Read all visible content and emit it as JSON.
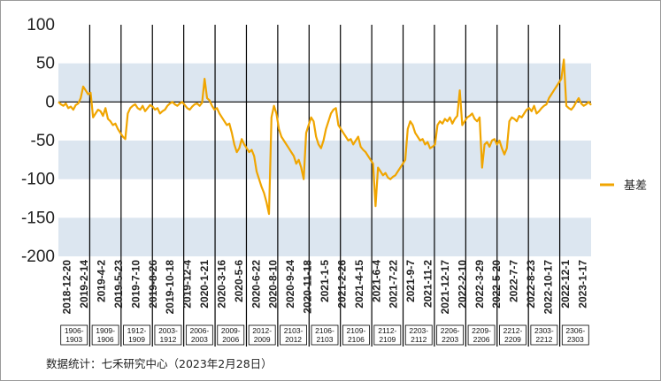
{
  "chart_data": {
    "type": "line",
    "ylim": [
      -200,
      100
    ],
    "yticks": [
      100,
      50,
      0,
      -50,
      -100,
      -150,
      -200
    ],
    "x_tick_labels": [
      "2018-12-20",
      "2019-2-14",
      "2019-4-2",
      "2019-5-23",
      "2019-7-10",
      "2019-8-26",
      "2019-10-18",
      "2019-12-4",
      "2020-1-21",
      "2020-3-16",
      "2020-5-6",
      "2020-6-22",
      "2020-8-10",
      "2020-9-24",
      "2020-11-18",
      "2021-1-5",
      "2021-2-26",
      "2021-4-15",
      "2021-6-4",
      "2021-7-22",
      "2021-9-7",
      "2021-11-2",
      "2021-12-17",
      "2022-2-10",
      "2022-3-29",
      "2022-5-20",
      "2022-7-7",
      "2022-8-23",
      "2022-10-17",
      "2022-12-1",
      "2023-1-17"
    ],
    "contract_spans": [
      "1906-1903",
      "1909-1906",
      "1912-1909",
      "2003-1912",
      "2006-2003",
      "2009-2006",
      "2012-2009",
      "2103-2012",
      "2106-2103",
      "2109-2106",
      "2112-2109",
      "2203-2112",
      "2206-2203",
      "2209-2206",
      "2212-2209",
      "2303-2212",
      "2306-2303"
    ],
    "series": [
      {
        "name": "基差",
        "color": "#f0a500",
        "values": [
          0,
          -3,
          -5,
          -2,
          -8,
          -6,
          -10,
          -4,
          -2,
          5,
          20,
          15,
          10,
          12,
          -20,
          -15,
          -10,
          -12,
          -18,
          -8,
          -22,
          -25,
          -30,
          -28,
          -35,
          -40,
          -45,
          -48,
          -15,
          -8,
          -5,
          -3,
          -8,
          -10,
          -5,
          -12,
          -8,
          -4,
          -6,
          -10,
          -8,
          -15,
          -12,
          -10,
          -5,
          -2,
          0,
          -3,
          -5,
          -2,
          0,
          -4,
          -8,
          -10,
          -6,
          -3,
          -2,
          -5,
          -1,
          30,
          5,
          2,
          -5,
          -10,
          -8,
          -15,
          -20,
          -25,
          -30,
          -28,
          -40,
          -55,
          -65,
          -60,
          -48,
          -55,
          -60,
          -65,
          -62,
          -70,
          -90,
          -100,
          -110,
          -118,
          -130,
          -145,
          -20,
          -5,
          -15,
          -35,
          -45,
          -50,
          -55,
          -60,
          -65,
          -70,
          -80,
          -75,
          -85,
          -100,
          -40,
          -30,
          -20,
          -25,
          -45,
          -55,
          -60,
          -50,
          -35,
          -25,
          -15,
          -10,
          -8,
          -30,
          -35,
          -40,
          -45,
          -50,
          -48,
          -55,
          -50,
          -45,
          -58,
          -62,
          -65,
          -70,
          -75,
          -80,
          -135,
          -85,
          -90,
          -95,
          -92,
          -98,
          -100,
          -97,
          -95,
          -90,
          -85,
          -80,
          -75,
          -35,
          -25,
          -30,
          -40,
          -45,
          -50,
          -48,
          -55,
          -52,
          -60,
          -58,
          -55,
          -30,
          -25,
          -28,
          -22,
          -25,
          -20,
          -28,
          -22,
          -18,
          15,
          -30,
          -25,
          -20,
          -18,
          -15,
          -22,
          -25,
          -20,
          -85,
          -55,
          -52,
          -58,
          -50,
          -48,
          -55,
          -50,
          -60,
          -68,
          -60,
          -25,
          -20,
          -22,
          -25,
          -18,
          -20,
          -15,
          -10,
          -8,
          -12,
          -5,
          -15,
          -12,
          -8,
          -5,
          -3,
          5,
          10,
          15,
          20,
          25,
          30,
          55,
          -5,
          -8,
          -10,
          -6,
          0,
          5,
          -2,
          -5,
          -3,
          0,
          -4
        ]
      }
    ]
  },
  "legend": {
    "label": "基差"
  },
  "source_note": "数据统计：七禾研究中心（2023年2月28日）"
}
